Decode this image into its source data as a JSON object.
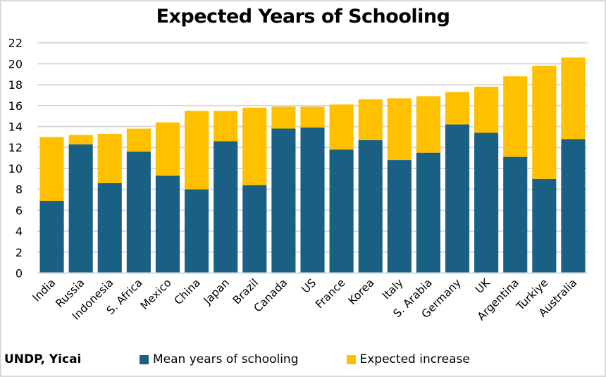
{
  "chart_data": {
    "type": "bar",
    "stacked": true,
    "title": "Expected Years of Schooling",
    "xlabel": "",
    "ylabel": "",
    "ylim": [
      0,
      22
    ],
    "yticks": [
      0,
      2,
      4,
      6,
      8,
      10,
      12,
      14,
      16,
      18,
      20,
      22
    ],
    "grid": true,
    "legend_position": "bottom",
    "categories": [
      "India",
      "Russia",
      "Indonesia",
      "S. Africa",
      "Mexico",
      "China",
      "Japan",
      "Brazil",
      "Canada",
      "US",
      "France",
      "Korea",
      "Italy",
      "S. Arabia",
      "Germany",
      "UK",
      "Argentina",
      "Turkiye",
      "Australia"
    ],
    "series": [
      {
        "name": "Mean years of schooling",
        "color": "#1a6085",
        "values": [
          6.9,
          12.3,
          8.6,
          11.6,
          9.3,
          8.0,
          12.6,
          8.4,
          13.8,
          13.9,
          11.8,
          12.7,
          10.8,
          11.5,
          14.2,
          13.4,
          11.1,
          9.0,
          12.8
        ]
      },
      {
        "name": "Expected increase",
        "color": "#ffc000",
        "values": [
          6.1,
          0.9,
          4.7,
          2.2,
          5.1,
          7.5,
          2.9,
          7.4,
          2.1,
          2.0,
          4.3,
          3.9,
          5.9,
          5.4,
          3.1,
          4.4,
          7.7,
          10.8,
          7.8
        ]
      }
    ],
    "source": "UNDP, Yicai"
  },
  "colors": {
    "gridline": "#d9d9d9",
    "axis": "#d9d9d9",
    "border": "#d9d9d9"
  }
}
